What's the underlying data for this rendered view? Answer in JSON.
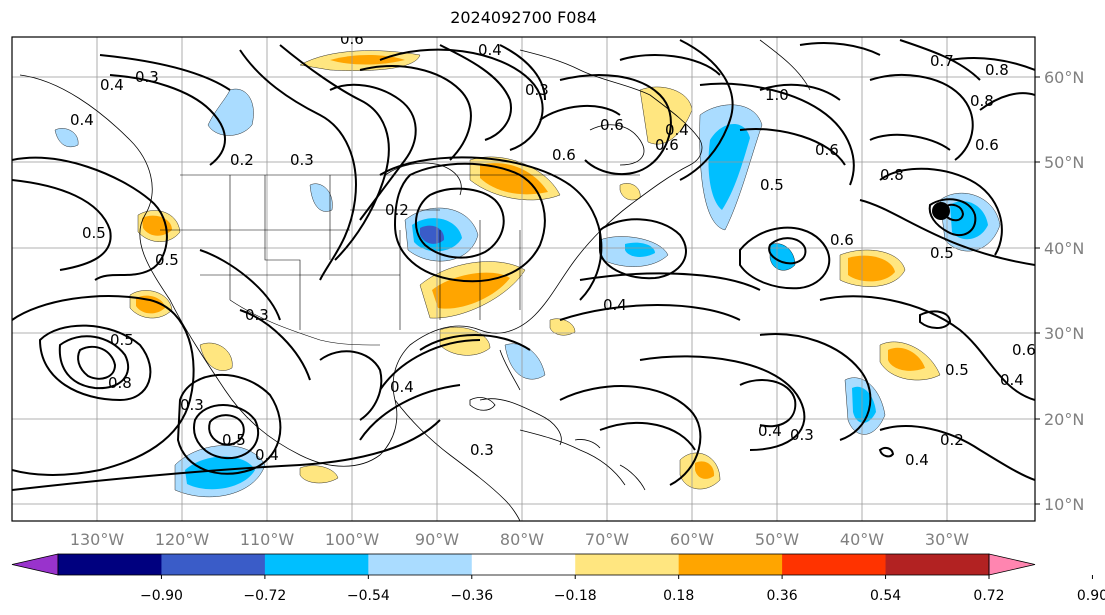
{
  "title": "2024092700 F084",
  "latitude_labels": [
    "60°N",
    "50°N",
    "40°N",
    "30°N",
    "20°N",
    "10°N"
  ],
  "longitude_labels": [
    "130°W",
    "120°W",
    "110°W",
    "100°W",
    "90°W",
    "80°W",
    "70°W",
    "60°W",
    "50°W",
    "40°W",
    "30°W"
  ],
  "colorbar": {
    "ticks": [
      "−0.90",
      "−0.72",
      "−0.54",
      "−0.36",
      "−0.18",
      "0.18",
      "0.36",
      "0.54",
      "0.72",
      "0.90"
    ],
    "colors": [
      "#9933cc",
      "#00007f",
      "#3a5cc8",
      "#00bfff",
      "#aadcff",
      "#ffffff",
      "#ffe680",
      "#ffa500",
      "#ff3300",
      "#b22222",
      "#ff85b0"
    ]
  },
  "contour_labels": [
    "0.6",
    "0.4",
    "0.3",
    "0.5",
    "0.8",
    "0.7",
    "1.0",
    "0.6",
    "0.8",
    "0.5",
    "0.6",
    "0.2",
    "0.5",
    "0.4",
    "0.3",
    "0.4",
    "0.4",
    "0.6",
    "0.5",
    "0.4",
    "0.2",
    "0.4",
    "0.5",
    "0.8",
    "0.6",
    "0.6",
    "0.3",
    "0.4",
    "0.3",
    "0.4",
    "0.5",
    "0.6",
    "0.2",
    "0.3",
    "0.6",
    "0.8",
    "0.3",
    "0.5",
    "0.4",
    "0.4",
    "0.3"
  ]
}
